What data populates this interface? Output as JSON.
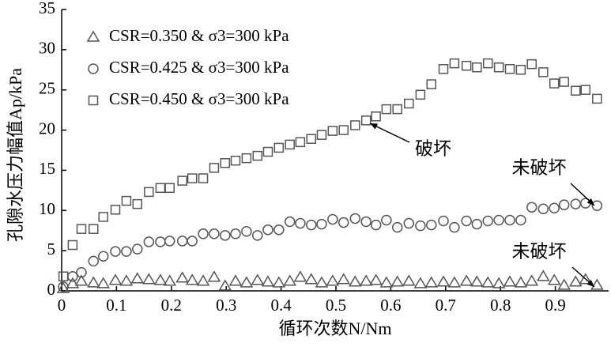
{
  "chart_data": {
    "type": "scatter",
    "xlabel": "循环次数N/Nm",
    "ylabel": "孔隙水压力幅值Ap/kPa",
    "xlim": [
      0,
      1.0
    ],
    "xticks": [
      0,
      0.1,
      0.2,
      0.3,
      0.4,
      0.5,
      0.6,
      0.7,
      0.8,
      0.9
    ],
    "ylim": [
      0,
      35
    ],
    "yticks": [
      0,
      5,
      10,
      15,
      20,
      25,
      30,
      35
    ],
    "legend": "upper left",
    "x": [
      0.003,
      0.02,
      0.036,
      0.058,
      0.076,
      0.098,
      0.118,
      0.138,
      0.159,
      0.18,
      0.197,
      0.22,
      0.238,
      0.258,
      0.278,
      0.298,
      0.317,
      0.337,
      0.357,
      0.376,
      0.396,
      0.416,
      0.435,
      0.455,
      0.474,
      0.494,
      0.514,
      0.535,
      0.555,
      0.573,
      0.592,
      0.612,
      0.633,
      0.654,
      0.674,
      0.696,
      0.716,
      0.738,
      0.757,
      0.777,
      0.797,
      0.817,
      0.837,
      0.857,
      0.878,
      0.898,
      0.916,
      0.937,
      0.955,
      0.976
    ],
    "series": [
      {
        "name": "CSR=0.350 & σ3=300 kPa",
        "marker": "triangle",
        "color": "#555555",
        "values": [
          0.3,
          0.9,
          1.2,
          1.0,
          0.9,
          1.3,
          1.2,
          1.5,
          1.4,
          1.3,
          1.2,
          1.6,
          1.3,
          1.2,
          1.7,
          0.6,
          1.2,
          1.0,
          1.3,
          1.1,
          1.0,
          1.2,
          1.7,
          1.4,
          1.0,
          1.2,
          1.4,
          1.1,
          1.2,
          1.3,
          1.0,
          1.1,
          1.2,
          0.9,
          1.0,
          1.1,
          1.0,
          1.2,
          1.1,
          1.0,
          0.9,
          1.1,
          1.0,
          1.2,
          1.8,
          1.3,
          0.7,
          1.1,
          1.4,
          0.7
        ]
      },
      {
        "name": "CSR=0.425 & σ3=300 kPa",
        "marker": "circle",
        "color": "#555555",
        "values": [
          0.5,
          1.8,
          2.3,
          3.7,
          4.3,
          4.9,
          4.9,
          5.2,
          6.1,
          6.1,
          6.2,
          6.2,
          6.2,
          7.1,
          7.1,
          6.9,
          7.1,
          7.4,
          6.9,
          7.6,
          7.6,
          8.6,
          8.4,
          8.2,
          8.3,
          8.9,
          8.5,
          9.0,
          8.6,
          8.2,
          8.8,
          7.9,
          8.4,
          8.1,
          8.2,
          8.7,
          7.9,
          8.7,
          8.3,
          8.7,
          8.8,
          8.8,
          8.8,
          10.4,
          10.2,
          10.3,
          10.7,
          10.8,
          10.9,
          10.6
        ]
      },
      {
        "name": "CSR=0.450 & σ3=300 kPa",
        "marker": "square",
        "color": "#555555",
        "values": [
          1.8,
          5.7,
          7.7,
          7.7,
          9.2,
          10.1,
          11.2,
          10.8,
          12.3,
          12.8,
          12.8,
          13.7,
          14.0,
          14.0,
          15.3,
          15.9,
          16.2,
          16.5,
          16.8,
          17.3,
          17.8,
          18.2,
          18.5,
          18.9,
          19.4,
          19.9,
          20.0,
          20.6,
          21.2,
          21.7,
          22.6,
          22.6,
          23.3,
          24.4,
          25.7,
          27.6,
          28.3,
          28.0,
          27.8,
          28.3,
          27.8,
          27.6,
          27.5,
          28.2,
          27.2,
          25.8,
          26.0,
          24.9,
          25.0,
          23.9
        ]
      }
    ],
    "annotations": [
      "破坏",
      "未破坏",
      "未破坏"
    ]
  }
}
